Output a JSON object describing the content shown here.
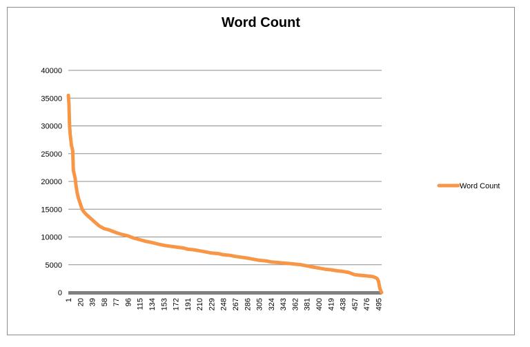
{
  "chart_data": {
    "type": "line",
    "title": "Word Count",
    "xlabel": "",
    "ylabel": "",
    "ylim": [
      0,
      40000
    ],
    "yticks": [
      0,
      5000,
      10000,
      15000,
      20000,
      25000,
      30000,
      35000,
      40000
    ],
    "xlim": [
      1,
      500
    ],
    "xticks": [
      1,
      20,
      39,
      58,
      77,
      96,
      115,
      134,
      153,
      172,
      191,
      210,
      229,
      248,
      267,
      286,
      305,
      324,
      343,
      362,
      381,
      400,
      419,
      438,
      457,
      476,
      495
    ],
    "grid": true,
    "legend_position": "right",
    "series": [
      {
        "name": "Word Count",
        "color": "#f79646",
        "x": [
          1,
          2,
          3,
          4,
          5,
          6,
          7,
          8,
          9,
          10,
          11,
          12,
          13,
          15,
          17,
          20,
          23,
          26,
          30,
          35,
          40,
          45,
          50,
          58,
          65,
          77,
          85,
          96,
          105,
          115,
          125,
          134,
          145,
          153,
          165,
          172,
          185,
          191,
          200,
          210,
          220,
          229,
          240,
          248,
          258,
          267,
          280,
          286,
          295,
          305,
          315,
          324,
          335,
          343,
          355,
          362,
          372,
          381,
          390,
          400,
          410,
          419,
          430,
          438,
          448,
          457,
          465,
          476,
          485,
          490,
          493,
          495,
          497,
          499,
          500
        ],
        "values": [
          35500,
          34000,
          30000,
          28500,
          27500,
          26500,
          26000,
          25500,
          22000,
          21500,
          21000,
          20500,
          19500,
          18000,
          17000,
          16000,
          15000,
          14500,
          14000,
          13500,
          13000,
          12500,
          12000,
          11500,
          11300,
          10800,
          10500,
          10200,
          9800,
          9500,
          9200,
          9000,
          8700,
          8500,
          8300,
          8200,
          8000,
          7800,
          7700,
          7500,
          7300,
          7100,
          7000,
          6800,
          6700,
          6500,
          6300,
          6200,
          6000,
          5800,
          5700,
          5500,
          5400,
          5300,
          5200,
          5100,
          5000,
          4800,
          4600,
          4400,
          4200,
          4100,
          3900,
          3800,
          3600,
          3200,
          3100,
          3000,
          2900,
          2700,
          2500,
          2000,
          800,
          200,
          0
        ]
      }
    ]
  }
}
